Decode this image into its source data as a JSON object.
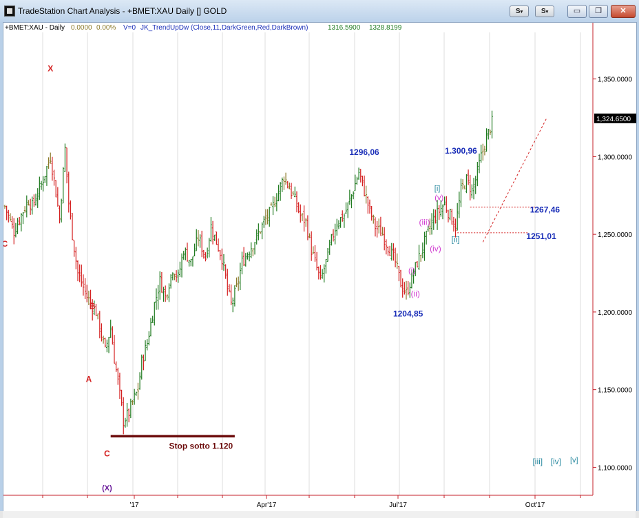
{
  "window": {
    "title": "TradeStation Chart Analysis - +BMET:XAU Daily [] GOLD",
    "mini_buttons": [
      "S",
      "S"
    ],
    "window_buttons": {
      "minimize": "▭",
      "restore": "❐",
      "close": "✕"
    }
  },
  "header": {
    "symbol": "+BMET:XAU - Daily",
    "change": "0.0000",
    "change_pct": "0.00%",
    "volume": "V=0",
    "indicator": "JK_TrendUpDw (Close,11,DarkGreen,Red,DarkBrown)",
    "value1": "1316.5900",
    "value2": "1328.8199"
  },
  "colors": {
    "up": "#1f7a1f",
    "down": "#d42020",
    "neutral": "#8b7a2a",
    "axis": "#c4202a",
    "wave_blue": "#1b2fb8",
    "wave_purple": "#6a1b9a",
    "wave_magenta": "#d03ad0",
    "wave_teal": "#2a8aa0",
    "stop_line": "#6b0a0a"
  },
  "chart_data": {
    "type": "bar",
    "chart_style": "ohlc",
    "x_ticks": [
      "'17",
      "Apr'17",
      "Jul'17",
      "Oct'17"
    ],
    "y_ticks": [
      "1,350.0000",
      "1,300.0000",
      "1,250.0000",
      "1,200.0000",
      "1,150.0000",
      "1,100.0000"
    ],
    "ylim": [
      1082,
      1380
    ],
    "last_price": "1,324.6500",
    "price_path": [
      [
        0,
        1268
      ],
      [
        5,
        1252
      ],
      [
        10,
        1265
      ],
      [
        13,
        1272
      ],
      [
        15,
        1268
      ],
      [
        20,
        1282
      ],
      [
        25,
        1300
      ],
      [
        27,
        1285
      ],
      [
        30,
        1260
      ],
      [
        33,
        1305
      ],
      [
        35,
        1270
      ],
      [
        37,
        1250
      ],
      [
        40,
        1225
      ],
      [
        45,
        1210
      ],
      [
        50,
        1200
      ],
      [
        55,
        1175
      ],
      [
        58,
        1190
      ],
      [
        60,
        1170
      ],
      [
        62,
        1155
      ],
      [
        65,
        1130
      ],
      [
        68,
        1135
      ],
      [
        70,
        1142
      ],
      [
        73,
        1150
      ],
      [
        75,
        1168
      ],
      [
        78,
        1180
      ],
      [
        82,
        1205
      ],
      [
        85,
        1220
      ],
      [
        88,
        1210
      ],
      [
        92,
        1228
      ],
      [
        95,
        1222
      ],
      [
        98,
        1240
      ],
      [
        102,
        1232
      ],
      [
        106,
        1248
      ],
      [
        110,
        1235
      ],
      [
        113,
        1255
      ],
      [
        116,
        1245
      ],
      [
        119,
        1235
      ],
      [
        122,
        1215
      ],
      [
        124,
        1205
      ],
      [
        127,
        1215
      ],
      [
        130,
        1232
      ],
      [
        134,
        1240
      ],
      [
        138,
        1248
      ],
      [
        142,
        1258
      ],
      [
        146,
        1265
      ],
      [
        150,
        1278
      ],
      [
        153,
        1287
      ],
      [
        156,
        1280
      ],
      [
        159,
        1272
      ],
      [
        162,
        1262
      ],
      [
        165,
        1258
      ],
      [
        168,
        1240
      ],
      [
        171,
        1228
      ],
      [
        173,
        1220
      ],
      [
        176,
        1232
      ],
      [
        179,
        1246
      ],
      [
        182,
        1258
      ],
      [
        186,
        1262
      ],
      [
        190,
        1275
      ],
      [
        194,
        1290
      ],
      [
        197,
        1278
      ],
      [
        200,
        1265
      ],
      [
        203,
        1255
      ],
      [
        207,
        1250
      ],
      [
        211,
        1240
      ],
      [
        214,
        1232
      ],
      [
        217,
        1218
      ],
      [
        220,
        1212
      ],
      [
        223,
        1222
      ],
      [
        227,
        1235
      ],
      [
        230,
        1245
      ],
      [
        234,
        1258
      ],
      [
        238,
        1265
      ],
      [
        241,
        1270
      ],
      [
        244,
        1262
      ],
      [
        247,
        1255
      ],
      [
        250,
        1278
      ],
      [
        253,
        1285
      ],
      [
        256,
        1278
      ],
      [
        258,
        1285
      ],
      [
        261,
        1300
      ],
      [
        264,
        1312
      ],
      [
        267,
        1322
      ]
    ],
    "total_bars": 267,
    "annotations": [
      {
        "text": "X",
        "color_key": "down",
        "x": 25,
        "y": 1355
      },
      {
        "text": "B",
        "color_key": "down",
        "x": 48,
        "y": 1202
      },
      {
        "text": "A",
        "color_key": "down",
        "x": 46,
        "y": 1155
      },
      {
        "text": "C",
        "color_key": "down",
        "x": 56,
        "y": 1107
      },
      {
        "text": "(X)",
        "color_key": "wave_purple",
        "x": 56,
        "y": 1085
      },
      {
        "text": "1296,06",
        "color_key": "wave_blue",
        "x": 197,
        "y": 1301
      },
      {
        "text": "1204,85",
        "color_key": "wave_blue",
        "x": 221,
        "y": 1197
      },
      {
        "text": "1.300,96",
        "color_key": "wave_blue",
        "x": 250,
        "y": 1302
      },
      {
        "text": "1267,46",
        "color_key": "wave_blue",
        "x": 296,
        "y": 1264
      },
      {
        "text": "1251,01",
        "color_key": "wave_blue",
        "x": 294,
        "y": 1247
      },
      {
        "text": "[i]",
        "color_key": "wave_teal",
        "x": 237,
        "y": 1278
      },
      {
        "text": "(v)",
        "color_key": "wave_magenta",
        "x": 238,
        "y": 1272
      },
      {
        "text": "(iii)",
        "color_key": "wave_magenta",
        "x": 230,
        "y": 1256
      },
      {
        "text": "[ii]",
        "color_key": "wave_teal",
        "x": 247,
        "y": 1245
      },
      {
        "text": "(iv)",
        "color_key": "wave_magenta",
        "x": 236,
        "y": 1239
      },
      {
        "text": "(i)",
        "color_key": "wave_magenta",
        "x": 223,
        "y": 1225
      },
      {
        "text": "(ii)",
        "color_key": "wave_magenta",
        "x": 225,
        "y": 1210
      },
      {
        "text": "[iii]",
        "color_key": "wave_teal",
        "x": 292,
        "y": 1102
      },
      {
        "text": "[iv]",
        "color_key": "wave_teal",
        "x": 302,
        "y": 1102
      },
      {
        "text": "[v]",
        "color_key": "wave_teal",
        "x": 312,
        "y": 1103
      },
      {
        "text": "Stop sotto 1.120",
        "color_key": "stop_line",
        "x": 90,
        "y": 1112
      },
      {
        "text": "C",
        "color_key": "down",
        "x": 0,
        "y": 1242
      }
    ],
    "stop_line": {
      "x1": 58,
      "x2": 126,
      "y": 1120
    },
    "levels": [
      {
        "value": 1267.46,
        "x1": 255,
        "x2": 291
      },
      {
        "value": 1251.01,
        "x1": 248,
        "x2": 287
      }
    ],
    "channel_line": {
      "x1": 262,
      "y1": 1245,
      "x2": 297,
      "y2": 1325
    },
    "channel_line_2": {
      "x1": 266,
      "y1": 1250,
      "x2": 272,
      "y2": 1270
    }
  }
}
